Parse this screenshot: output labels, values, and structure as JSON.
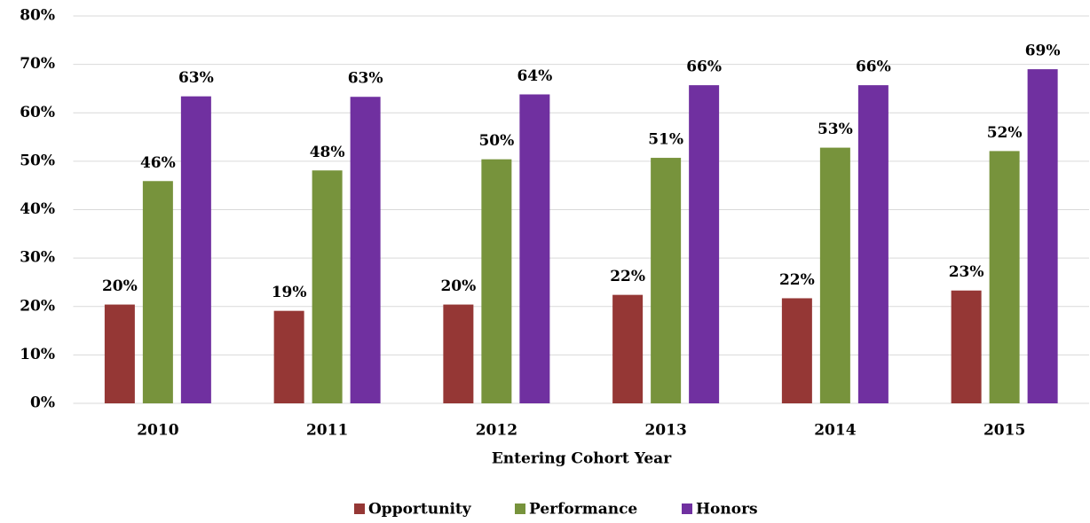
{
  "chart_data": {
    "type": "bar",
    "x_label": "Entering Cohort Year",
    "categories": [
      "2010",
      "2011",
      "2012",
      "2013",
      "2014",
      "2015"
    ],
    "series": [
      {
        "name": "Opportunity",
        "color": "#953735",
        "values": [
          20.4,
          19.1,
          20.4,
          22.4,
          21.7,
          23.3
        ],
        "value_labels": [
          "20%",
          "19%",
          "20%",
          "22%",
          "22%",
          "23%"
        ]
      },
      {
        "name": "Performance",
        "color": "#77933c",
        "values": [
          45.9,
          48.1,
          50.4,
          50.7,
          52.8,
          52.1
        ],
        "value_labels": [
          "46%",
          "48%",
          "50%",
          "51%",
          "53%",
          "52%"
        ]
      },
      {
        "name": "Honors",
        "color": "#7030a0",
        "values": [
          63.4,
          63.3,
          63.8,
          65.7,
          65.7,
          69.0
        ],
        "value_labels": [
          "63%",
          "63%",
          "64%",
          "66%",
          "66%",
          "69%"
        ]
      }
    ],
    "ylim": [
      0,
      80
    ],
    "yticks": [
      {
        "value": 0,
        "label": "0%"
      },
      {
        "value": 10,
        "label": "10%"
      },
      {
        "value": 20,
        "label": "20%"
      },
      {
        "value": 30,
        "label": "30%"
      },
      {
        "value": 40,
        "label": "40%"
      },
      {
        "value": 50,
        "label": "50%"
      },
      {
        "value": 60,
        "label": "60%"
      },
      {
        "value": 70,
        "label": "70%"
      },
      {
        "value": 80,
        "label": "80%"
      }
    ],
    "grid": true,
    "legend": "bottom"
  }
}
